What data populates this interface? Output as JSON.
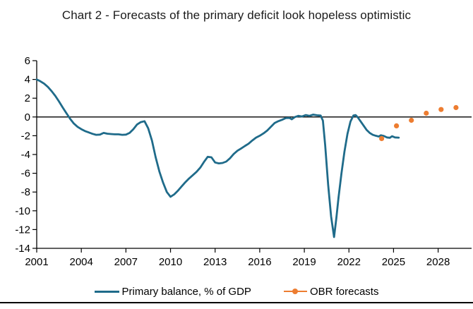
{
  "title": "Chart 2 - Forecasts of the primary deficit look hopeless optimistic",
  "colors": {
    "primary_line": "#1f6b8a",
    "forecast_dots": "#ed7d31",
    "axis": "#000000",
    "title_text": "#1b1b1b"
  },
  "legend": [
    {
      "label": "Primary balance, % of GDP",
      "marker": "line",
      "color": "#1f6b8a"
    },
    {
      "label": "OBR forecasts",
      "marker": "line-dot",
      "color": "#ed7d31"
    }
  ],
  "chart_data": {
    "type": "line",
    "title": "Chart 2 - Forecasts of the primary deficit look hopeless optimistic",
    "xlabel": "",
    "ylabel": "",
    "grid": false,
    "zero_line": true,
    "legend_position": "bottom",
    "x_axis": {
      "range": [
        2001,
        2030.25
      ],
      "ticks": [
        2001,
        2004,
        2007,
        2010,
        2013,
        2016,
        2019,
        2022,
        2025,
        2028
      ]
    },
    "y_axis": {
      "range": [
        -14,
        6
      ],
      "ticks": [
        6,
        4,
        2,
        0,
        -2,
        -4,
        -6,
        -8,
        -10,
        -12,
        -14
      ]
    },
    "series": [
      {
        "name": "Primary balance, % of GDP",
        "type": "line",
        "color": "#1f6b8a",
        "points": [
          [
            2001.0,
            4.0
          ],
          [
            2001.25,
            3.8
          ],
          [
            2001.5,
            3.55
          ],
          [
            2001.75,
            3.2
          ],
          [
            2002.0,
            2.75
          ],
          [
            2002.25,
            2.25
          ],
          [
            2002.5,
            1.65
          ],
          [
            2002.75,
            1.0
          ],
          [
            2003.0,
            0.4
          ],
          [
            2003.25,
            -0.2
          ],
          [
            2003.5,
            -0.7
          ],
          [
            2003.75,
            -1.05
          ],
          [
            2004.0,
            -1.3
          ],
          [
            2004.25,
            -1.5
          ],
          [
            2004.5,
            -1.65
          ],
          [
            2004.75,
            -1.8
          ],
          [
            2005.0,
            -1.9
          ],
          [
            2005.25,
            -1.88
          ],
          [
            2005.5,
            -1.7
          ],
          [
            2005.75,
            -1.78
          ],
          [
            2006.0,
            -1.82
          ],
          [
            2006.25,
            -1.85
          ],
          [
            2006.5,
            -1.85
          ],
          [
            2006.75,
            -1.9
          ],
          [
            2007.0,
            -1.88
          ],
          [
            2007.25,
            -1.7
          ],
          [
            2007.5,
            -1.3
          ],
          [
            2007.75,
            -0.8
          ],
          [
            2008.0,
            -0.55
          ],
          [
            2008.25,
            -0.45
          ],
          [
            2008.5,
            -1.2
          ],
          [
            2008.75,
            -2.5
          ],
          [
            2009.0,
            -4.3
          ],
          [
            2009.25,
            -5.8
          ],
          [
            2009.5,
            -7.0
          ],
          [
            2009.75,
            -8.0
          ],
          [
            2010.0,
            -8.5
          ],
          [
            2010.25,
            -8.25
          ],
          [
            2010.5,
            -7.85
          ],
          [
            2010.75,
            -7.4
          ],
          [
            2011.0,
            -6.95
          ],
          [
            2011.25,
            -6.55
          ],
          [
            2011.5,
            -6.2
          ],
          [
            2011.75,
            -5.85
          ],
          [
            2012.0,
            -5.4
          ],
          [
            2012.25,
            -4.8
          ],
          [
            2012.5,
            -4.25
          ],
          [
            2012.75,
            -4.3
          ],
          [
            2013.0,
            -4.85
          ],
          [
            2013.25,
            -4.95
          ],
          [
            2013.5,
            -4.9
          ],
          [
            2013.75,
            -4.75
          ],
          [
            2014.0,
            -4.4
          ],
          [
            2014.25,
            -3.95
          ],
          [
            2014.5,
            -3.6
          ],
          [
            2014.75,
            -3.35
          ],
          [
            2015.0,
            -3.1
          ],
          [
            2015.25,
            -2.85
          ],
          [
            2015.5,
            -2.5
          ],
          [
            2015.75,
            -2.2
          ],
          [
            2016.0,
            -2.0
          ],
          [
            2016.25,
            -1.75
          ],
          [
            2016.5,
            -1.45
          ],
          [
            2016.75,
            -1.05
          ],
          [
            2017.0,
            -0.65
          ],
          [
            2017.25,
            -0.45
          ],
          [
            2017.5,
            -0.3
          ],
          [
            2017.75,
            -0.12
          ],
          [
            2018.0,
            -0.1
          ],
          [
            2018.15,
            -0.25
          ],
          [
            2018.35,
            -0.02
          ],
          [
            2018.6,
            0.12
          ],
          [
            2018.85,
            0.05
          ],
          [
            2019.1,
            0.2
          ],
          [
            2019.35,
            0.12
          ],
          [
            2019.6,
            0.25
          ],
          [
            2019.85,
            0.18
          ],
          [
            2020.1,
            0.15
          ],
          [
            2020.25,
            -0.4
          ],
          [
            2020.4,
            -3.0
          ],
          [
            2020.6,
            -7.2
          ],
          [
            2020.8,
            -10.6
          ],
          [
            2021.0,
            -12.8
          ],
          [
            2021.15,
            -10.8
          ],
          [
            2021.3,
            -8.6
          ],
          [
            2021.5,
            -6.0
          ],
          [
            2021.7,
            -3.7
          ],
          [
            2021.9,
            -1.8
          ],
          [
            2022.1,
            -0.5
          ],
          [
            2022.3,
            0.15
          ],
          [
            2022.45,
            0.2
          ],
          [
            2022.6,
            -0.05
          ],
          [
            2022.8,
            -0.5
          ],
          [
            2023.0,
            -0.95
          ],
          [
            2023.2,
            -1.4
          ],
          [
            2023.4,
            -1.7
          ],
          [
            2023.6,
            -1.9
          ],
          [
            2023.8,
            -2.0
          ],
          [
            2024.0,
            -2.08
          ],
          [
            2024.15,
            -1.95
          ],
          [
            2024.35,
            -2.02
          ],
          [
            2024.55,
            -2.18
          ],
          [
            2024.75,
            -2.22
          ],
          [
            2024.9,
            -2.05
          ],
          [
            2025.1,
            -2.18
          ],
          [
            2025.35,
            -2.2
          ]
        ]
      },
      {
        "name": "OBR forecasts",
        "type": "scatter",
        "color": "#ed7d31",
        "points": [
          [
            2024.2,
            -2.3
          ],
          [
            2025.2,
            -0.95
          ],
          [
            2026.2,
            -0.35
          ],
          [
            2027.2,
            0.4
          ],
          [
            2028.2,
            0.8
          ],
          [
            2029.2,
            1.0
          ]
        ]
      }
    ]
  }
}
